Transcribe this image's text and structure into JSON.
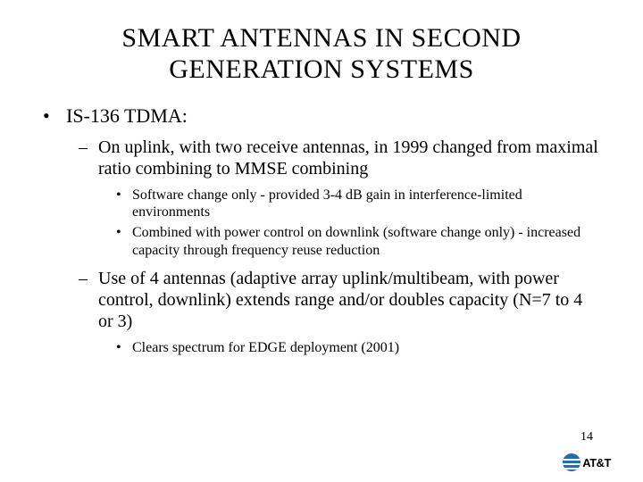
{
  "title_line1": "SMART ANTENNAS IN SECOND",
  "title_line2": "GENERATION SYSTEMS",
  "bullets": {
    "l1_1": "IS-136 TDMA:",
    "l2_1": "On uplink, with two receive antennas, in 1999 changed from maximal ratio combining to MMSE combining",
    "l3_1": "Software change only - provided 3-4 dB gain in interference-limited environments",
    "l3_2": "Combined with power control on downlink (software change only) - increased capacity through frequency reuse reduction",
    "l2_2": "Use of 4 antennas (adaptive array uplink/multibeam, with power control, downlink) extends range and/or doubles capacity (N=7 to 4 or 3)",
    "l3_3": "Clears spectrum for EDGE deployment (2001)"
  },
  "page_number": "14",
  "logo_text": "AT&T",
  "colors": {
    "background": "#ffffff",
    "text": "#000000",
    "logo_globe": "#1a6fb5"
  },
  "typography": {
    "title_fontsize": 30,
    "l1_fontsize": 22,
    "l2_fontsize": 20,
    "l3_fontsize": 16,
    "pagenum_fontsize": 14,
    "font_family": "Times New Roman"
  }
}
